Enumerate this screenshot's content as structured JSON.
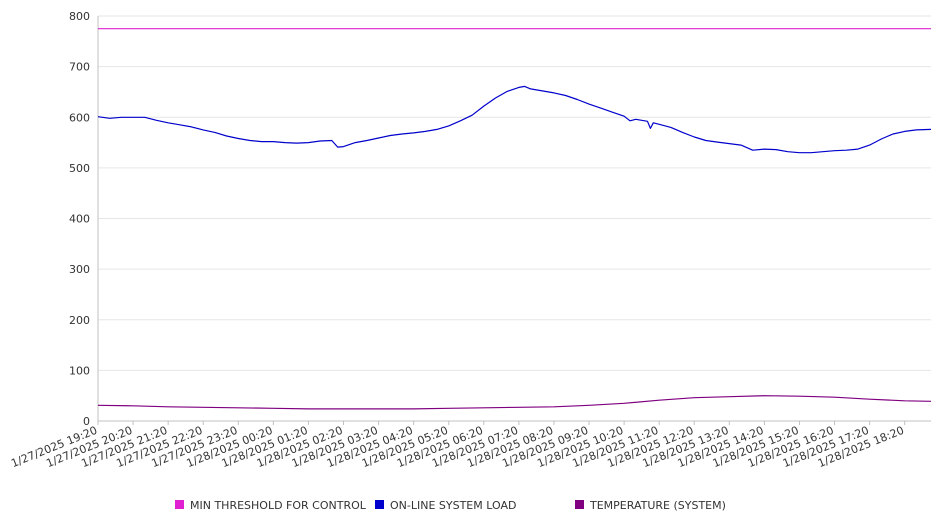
{
  "chart_data": {
    "type": "line",
    "title": "",
    "xlabel": "",
    "ylabel": "",
    "ylim": [
      0,
      800
    ],
    "yticks": [
      0,
      100,
      200,
      300,
      400,
      500,
      600,
      700,
      800
    ],
    "grid": "horizontal",
    "legend_position": "bottom",
    "x_tick_labels": [
      "1/27/2025 19:20",
      "1/27/2025 20:20",
      "1/27/2025 21:20",
      "1/27/2025 22:20",
      "1/27/2025 23:20",
      "1/28/2025 00:20",
      "1/28/2025 01:20",
      "1/28/2025 02:20",
      "1/28/2025 03:20",
      "1/28/2025 04:20",
      "1/28/2025 05:20",
      "1/28/2025 06:20",
      "1/28/2025 07:20",
      "1/28/2025 08:20",
      "1/28/2025 09:20",
      "1/28/2025 10:20",
      "1/28/2025 11:20",
      "1/28/2025 12:20",
      "1/28/2025 13:20",
      "1/28/2025 14:20",
      "1/28/2025 15:20",
      "1/28/2025 16:20",
      "1/28/2025 17:20",
      "1/28/2025 18:20"
    ],
    "x_start": "1/27/2025 19:20",
    "x_end": "1/28/2025 19:05",
    "series": [
      {
        "name": "MIN THRESHOLD FOR CONTROL",
        "color": "#e020d0",
        "points": [
          [
            "1/27/2025 19:20",
            775
          ],
          [
            "1/28/2025 19:05",
            775
          ]
        ]
      },
      {
        "name": "ON-LINE SYSTEM LOAD",
        "color": "#0000cc",
        "points": [
          [
            "1/27/2025 19:20",
            601
          ],
          [
            "1/27/2025 19:40",
            598
          ],
          [
            "1/27/2025 20:00",
            600
          ],
          [
            "1/27/2025 20:20",
            600
          ],
          [
            "1/27/2025 20:40",
            600
          ],
          [
            "1/27/2025 21:00",
            594
          ],
          [
            "1/27/2025 21:20",
            589
          ],
          [
            "1/27/2025 21:40",
            585
          ],
          [
            "1/27/2025 22:00",
            581
          ],
          [
            "1/27/2025 22:20",
            575
          ],
          [
            "1/27/2025 22:40",
            570
          ],
          [
            "1/27/2025 23:00",
            563
          ],
          [
            "1/27/2025 23:20",
            558
          ],
          [
            "1/27/2025 23:40",
            554
          ],
          [
            "1/28/2025 00:00",
            552
          ],
          [
            "1/28/2025 00:20",
            552
          ],
          [
            "1/28/2025 00:40",
            550
          ],
          [
            "1/28/2025 01:00",
            549
          ],
          [
            "1/28/2025 01:20",
            550
          ],
          [
            "1/28/2025 01:40",
            553
          ],
          [
            "1/28/2025 02:00",
            554
          ],
          [
            "1/28/2025 02:10",
            541
          ],
          [
            "1/28/2025 02:20",
            542
          ],
          [
            "1/28/2025 02:40",
            550
          ],
          [
            "1/28/2025 03:00",
            554
          ],
          [
            "1/28/2025 03:20",
            559
          ],
          [
            "1/28/2025 03:40",
            564
          ],
          [
            "1/28/2025 04:00",
            567
          ],
          [
            "1/28/2025 04:20",
            569
          ],
          [
            "1/28/2025 04:40",
            572
          ],
          [
            "1/28/2025 05:00",
            576
          ],
          [
            "1/28/2025 05:20",
            583
          ],
          [
            "1/28/2025 05:40",
            593
          ],
          [
            "1/28/2025 06:00",
            604
          ],
          [
            "1/28/2025 06:20",
            622
          ],
          [
            "1/28/2025 06:40",
            638
          ],
          [
            "1/28/2025 07:00",
            651
          ],
          [
            "1/28/2025 07:20",
            659
          ],
          [
            "1/28/2025 07:30",
            661
          ],
          [
            "1/28/2025 07:40",
            656
          ],
          [
            "1/28/2025 08:00",
            652
          ],
          [
            "1/28/2025 08:20",
            648
          ],
          [
            "1/28/2025 08:40",
            643
          ],
          [
            "1/28/2025 09:00",
            635
          ],
          [
            "1/28/2025 09:20",
            626
          ],
          [
            "1/28/2025 09:40",
            618
          ],
          [
            "1/28/2025 10:00",
            610
          ],
          [
            "1/28/2025 10:20",
            602
          ],
          [
            "1/28/2025 10:30",
            593
          ],
          [
            "1/28/2025 10:40",
            596
          ],
          [
            "1/28/2025 11:00",
            592
          ],
          [
            "1/28/2025 11:05",
            578
          ],
          [
            "1/28/2025 11:10",
            589
          ],
          [
            "1/28/2025 11:20",
            586
          ],
          [
            "1/28/2025 11:40",
            580
          ],
          [
            "1/28/2025 12:00",
            570
          ],
          [
            "1/28/2025 12:20",
            561
          ],
          [
            "1/28/2025 12:40",
            554
          ],
          [
            "1/28/2025 13:00",
            551
          ],
          [
            "1/28/2025 13:20",
            548
          ],
          [
            "1/28/2025 13:40",
            545
          ],
          [
            "1/28/2025 14:00",
            535
          ],
          [
            "1/28/2025 14:20",
            537
          ],
          [
            "1/28/2025 14:40",
            536
          ],
          [
            "1/28/2025 15:00",
            532
          ],
          [
            "1/28/2025 15:20",
            530
          ],
          [
            "1/28/2025 15:40",
            530
          ],
          [
            "1/28/2025 16:00",
            532
          ],
          [
            "1/28/2025 16:20",
            534
          ],
          [
            "1/28/2025 16:40",
            535
          ],
          [
            "1/28/2025 17:00",
            537
          ],
          [
            "1/28/2025 17:20",
            545
          ],
          [
            "1/28/2025 17:40",
            557
          ],
          [
            "1/28/2025 18:00",
            567
          ],
          [
            "1/28/2025 18:20",
            572
          ],
          [
            "1/28/2025 18:40",
            575
          ],
          [
            "1/28/2025 19:05",
            576
          ]
        ]
      },
      {
        "name": "TEMPERATURE (SYSTEM)",
        "color": "#800080",
        "points": [
          [
            "1/27/2025 19:20",
            31
          ],
          [
            "1/27/2025 20:20",
            30
          ],
          [
            "1/27/2025 21:20",
            28
          ],
          [
            "1/27/2025 22:20",
            27
          ],
          [
            "1/27/2025 23:20",
            26
          ],
          [
            "1/28/2025 00:20",
            25
          ],
          [
            "1/28/2025 01:20",
            24
          ],
          [
            "1/28/2025 02:20",
            24
          ],
          [
            "1/28/2025 03:20",
            24
          ],
          [
            "1/28/2025 04:20",
            24
          ],
          [
            "1/28/2025 05:20",
            25
          ],
          [
            "1/28/2025 06:20",
            26
          ],
          [
            "1/28/2025 07:20",
            27
          ],
          [
            "1/28/2025 08:20",
            28
          ],
          [
            "1/28/2025 09:20",
            31
          ],
          [
            "1/28/2025 10:20",
            35
          ],
          [
            "1/28/2025 11:20",
            41
          ],
          [
            "1/28/2025 12:20",
            46
          ],
          [
            "1/28/2025 13:20",
            48
          ],
          [
            "1/28/2025 14:20",
            50
          ],
          [
            "1/28/2025 15:20",
            49
          ],
          [
            "1/28/2025 16:20",
            47
          ],
          [
            "1/28/2025 17:20",
            43
          ],
          [
            "1/28/2025 18:20",
            40
          ],
          [
            "1/28/2025 19:05",
            39
          ]
        ]
      }
    ]
  }
}
